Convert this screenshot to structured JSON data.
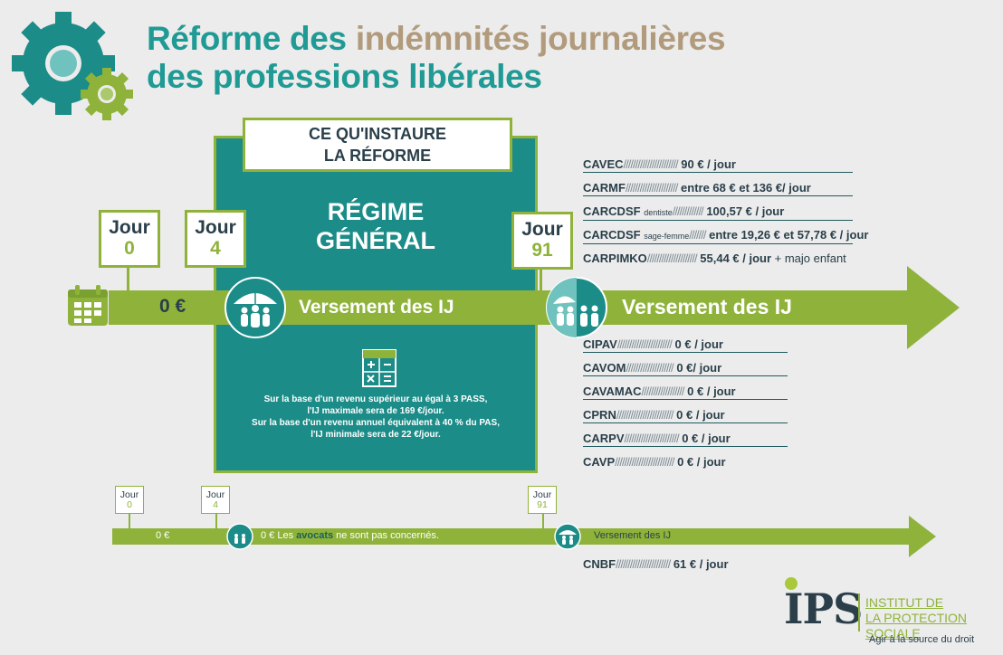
{
  "title": {
    "line1_a": "Réforme des ",
    "line1_b": "indémnités journalières",
    "line2": "des professions libérales"
  },
  "center_box": {
    "label_line1": "CE QU'INSTAURE",
    "label_line2": "LA RÉFORME",
    "regime_line1": "RÉGIME",
    "regime_line2": "GÉNÉRAL",
    "note_line1": "Sur la base d'un revenu supérieur au égal à 3 PASS,",
    "note_line2": "l'IJ maximale sera de 169 €/jour.",
    "note_line3": "Sur la base d'un revenu annuel équivalent à 40 % du PAS,",
    "note_line4": "l'IJ minimale sera de 22 €/jour."
  },
  "main_timeline": {
    "days": [
      {
        "word": "Jour",
        "num": "0"
      },
      {
        "word": "Jour",
        "num": "4"
      },
      {
        "word": "Jour",
        "num": "91"
      }
    ],
    "zero_label": "0 €",
    "versement_1": "Versement des IJ",
    "versement_2": "Versement des IJ"
  },
  "rates_top": [
    {
      "name": "CAVEC",
      "note": "",
      "slashes": "///////////////////////",
      "value": "90 € / jour",
      "extra": ""
    },
    {
      "name": "CARMF",
      "note": "",
      "slashes": "//////////////////////",
      "value": "entre 68 € et 136 €/ jour",
      "extra": ""
    },
    {
      "name": "CARCDSF",
      "note": "dentiste",
      "slashes": "/////////////",
      "value": "100,57 € / jour",
      "extra": ""
    },
    {
      "name": "CARCDSF",
      "note": "sage-femme",
      "slashes": "///////",
      "value": "entre 19,26 € et 57,78 € / jour",
      "extra": ""
    },
    {
      "name": "CARPIMKO",
      "note": "",
      "slashes": "/////////////////////",
      "value": "55,44 € / jour",
      "extra": " + majo enfant"
    }
  ],
  "rates_bottom": [
    {
      "name": "CIPAV",
      "slashes": "///////////////////////",
      "value": "0 € / jour"
    },
    {
      "name": "CAVOM",
      "slashes": "////////////////////",
      "value": " 0 €/ jour"
    },
    {
      "name": "CAVAMAC",
      "slashes": "//////////////////",
      "value": " 0 € / jour"
    },
    {
      "name": "CPRN",
      "slashes": "////////////////////////",
      "value": "0 € / jour"
    },
    {
      "name": "CARPV",
      "slashes": "///////////////////////",
      "value": "0 € / jour"
    },
    {
      "name": "CAVP",
      "slashes": "/////////////////////////",
      "value": "0 € / jour"
    }
  ],
  "lawyer_timeline": {
    "days": [
      {
        "word": "Jour",
        "num": "0"
      },
      {
        "word": "Jour",
        "num": "4"
      },
      {
        "word": "Jour",
        "num": "91"
      }
    ],
    "zero_label": "0 €",
    "notice_a": "0 € Les ",
    "notice_b": "avocats",
    "notice_c": " ne sont pas concernés.",
    "versement": "Versement des IJ",
    "cnbf": {
      "name": "CNBF",
      "slashes": "///////////////////////",
      "value": "61 € / jour"
    }
  },
  "logo": {
    "letters": "IPS",
    "name_line1": "INSTITUT DE",
    "name_line2": "LA PROTECTION SOCIALE",
    "tagline": "Agir à la source du droit"
  },
  "colors": {
    "teal": "#1b8c88",
    "green": "#8fb33a",
    "title_teal": "#1f9a95",
    "title_tan": "#b19b7c",
    "text_dark": "#2a3f4a"
  }
}
